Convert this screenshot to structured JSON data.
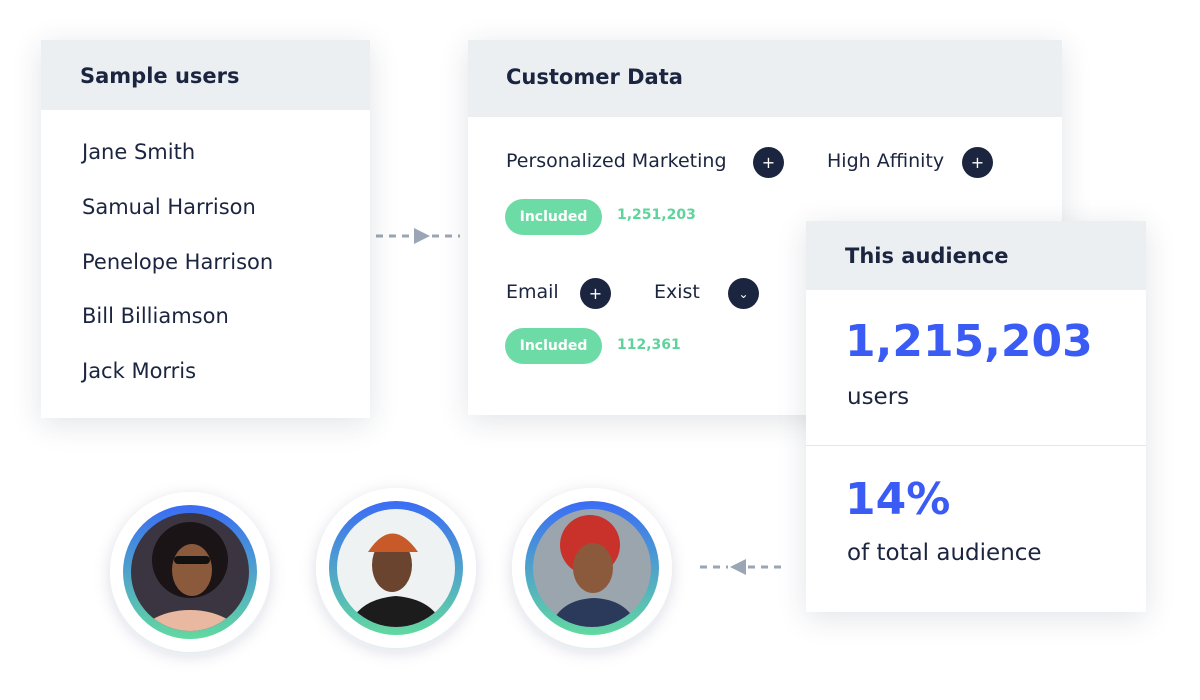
{
  "sample_users": {
    "title": "Sample users",
    "names": [
      "Jane Smith",
      "Samual Harrison",
      "Penelope Harrison",
      "Bill Billiamson",
      "Jack Morris"
    ]
  },
  "customer_data": {
    "title": "Customer Data",
    "rows": [
      {
        "attributes": [
          "Personalized Marketing",
          "High Affinity"
        ],
        "badge": "Included",
        "count": "1,251,203"
      },
      {
        "attributes": [
          "Email",
          "Exist"
        ],
        "badge": "Included",
        "count": "112,361"
      }
    ]
  },
  "audience": {
    "title": "This audience",
    "count": "1,215,203",
    "count_label": "users",
    "share": "14%",
    "share_label": "of total audience"
  }
}
